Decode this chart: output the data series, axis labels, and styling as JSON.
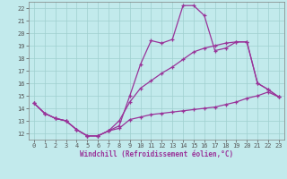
{
  "xlabel": "Windchill (Refroidissement éolien,°C)",
  "ylabel": "",
  "background_color": "#c2eaec",
  "grid_color": "#9fcfcf",
  "line_color": "#993399",
  "marker": "+",
  "xlim": [
    -0.5,
    23.5
  ],
  "ylim": [
    11.5,
    22.5
  ],
  "xticks": [
    0,
    1,
    2,
    3,
    4,
    5,
    6,
    7,
    8,
    9,
    10,
    11,
    12,
    13,
    14,
    15,
    16,
    17,
    18,
    19,
    20,
    21,
    22,
    23
  ],
  "yticks": [
    12,
    13,
    14,
    15,
    16,
    17,
    18,
    19,
    20,
    21,
    22
  ],
  "curve1_x": [
    0,
    1,
    2,
    3,
    4,
    5,
    6,
    7,
    8,
    9,
    10,
    11,
    12,
    13,
    14,
    15,
    16,
    17,
    18,
    19,
    20,
    21,
    22,
    23
  ],
  "curve1_y": [
    14.4,
    13.6,
    13.2,
    13.0,
    12.3,
    11.8,
    11.8,
    12.2,
    12.4,
    13.1,
    13.3,
    13.5,
    13.6,
    13.7,
    13.8,
    13.9,
    14.0,
    14.1,
    14.3,
    14.5,
    14.8,
    15.0,
    15.3,
    14.9
  ],
  "curve2_x": [
    0,
    1,
    2,
    3,
    4,
    5,
    6,
    7,
    8,
    9,
    10,
    11,
    12,
    13,
    14,
    15,
    16,
    17,
    18,
    19,
    20,
    21,
    22,
    23
  ],
  "curve2_y": [
    14.4,
    13.6,
    13.2,
    13.0,
    12.3,
    11.8,
    11.8,
    12.2,
    12.6,
    15.0,
    17.5,
    19.4,
    19.2,
    19.5,
    22.2,
    22.2,
    21.4,
    18.6,
    18.8,
    19.3,
    19.3,
    16.0,
    15.5,
    14.9
  ],
  "curve3_x": [
    0,
    1,
    2,
    3,
    4,
    5,
    6,
    7,
    8,
    9,
    10,
    11,
    12,
    13,
    14,
    15,
    16,
    17,
    18,
    19,
    20,
    21,
    22,
    23
  ],
  "curve3_y": [
    14.4,
    13.6,
    13.2,
    13.0,
    12.3,
    11.8,
    11.8,
    12.2,
    13.0,
    14.5,
    15.6,
    16.2,
    16.8,
    17.3,
    17.9,
    18.5,
    18.8,
    19.0,
    19.2,
    19.3,
    19.3,
    16.0,
    15.5,
    14.9
  ]
}
